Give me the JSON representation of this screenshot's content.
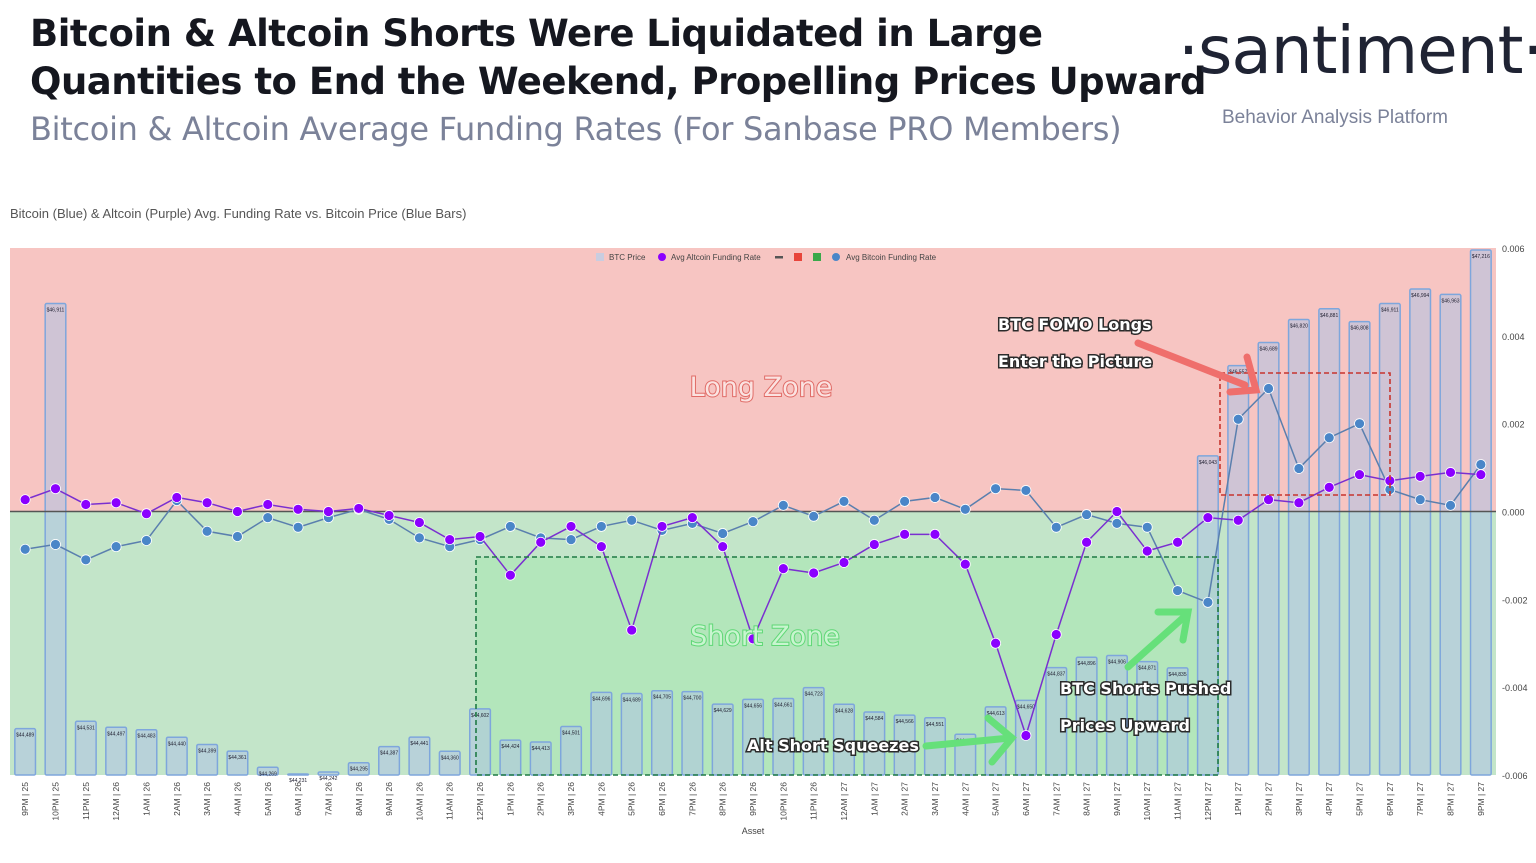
{
  "header": {
    "title_line1": "Bitcoin & Altcoin Shorts Were Liquidated in Large",
    "title_line2": "Quantities to End the Weekend, Propelling Prices Upward",
    "subtitle": "Bitcoin & Altcoin Average Funding Rates (For Sanbase PRO Members)",
    "logo": "·santiment·",
    "tagline": "Behavior Analysis Platform"
  },
  "chart_data": {
    "type": "bar+line",
    "title": "Bitcoin (Blue) & Altcoin (Purple) Avg. Funding Rate vs. Bitcoin Price (Blue Bars)",
    "xlabel": "Asset",
    "categories": [
      "9PM | 25",
      "10PM | 25",
      "11PM | 25",
      "12AM | 26",
      "1AM | 26",
      "2AM | 26",
      "3AM | 26",
      "4AM | 26",
      "5AM | 26",
      "6AM | 26",
      "7AM | 26",
      "8AM | 26",
      "9AM | 26",
      "10AM | 26",
      "11AM | 26",
      "12PM | 26",
      "1PM | 26",
      "2PM | 26",
      "3PM | 26",
      "4PM | 26",
      "5PM | 26",
      "6PM | 26",
      "7PM | 26",
      "8PM | 26",
      "9PM | 26",
      "10PM | 26",
      "11PM | 26",
      "12AM | 27",
      "1AM | 27",
      "2AM | 27",
      "3AM | 27",
      "4AM | 27",
      "5AM | 27",
      "6AM | 27",
      "7AM | 27",
      "8AM | 27",
      "9AM | 27",
      "10AM | 27",
      "11AM | 27",
      "12PM | 27",
      "1PM | 27",
      "2PM | 27",
      "3PM | 27",
      "4PM | 27",
      "5PM | 27",
      "6PM | 27",
      "7PM | 27",
      "8PM | 27",
      "9PM | 27"
    ],
    "legend": [
      "BTC Price",
      "Avg Altcoin Funding Rate",
      "",
      "",
      "",
      "Avg Bitcoin Funding Rate"
    ],
    "legend_placement": "top-center",
    "yticks": [
      "0.006",
      "0.004",
      "0.002",
      "0.000",
      "-0.002",
      "-0.004",
      "-0.006"
    ],
    "ylim": [
      -0.006,
      0.006
    ],
    "price_range": [
      44225,
      47216
    ],
    "series": [
      {
        "name": "BTC Price",
        "kind": "bar",
        "color": "#b8c7e3",
        "values": [
          44489,
          46911,
          44531,
          44497,
          44483,
          44440,
          44399,
          44361,
          44269,
          44231,
          44242,
          44295,
          44387,
          44441,
          44360,
          44602,
          44424,
          44413,
          44501,
          44696,
          44689,
          44705,
          44700,
          44629,
          44656,
          44661,
          44723,
          44628,
          44584,
          44566,
          44551,
          44457,
          44613,
          44650,
          44837,
          44896,
          44906,
          44871,
          44835,
          46043,
          46557,
          46689,
          46820,
          46881,
          46808,
          46911,
          46994,
          46963,
          47216
        ]
      },
      {
        "name": "Avg Altcoin Funding Rate",
        "kind": "line",
        "color": "#8b00ff",
        "values": [
          0.00027,
          0.00052,
          0.00016,
          0.0002,
          -5e-05,
          0.00032,
          0.0002,
          0,
          0.00016,
          5e-05,
          0,
          7e-05,
          -9e-05,
          -0.00025,
          -0.00064,
          -0.00057,
          -0.00145,
          -0.0007,
          -0.00034,
          -0.0008,
          -0.0027,
          -0.00034,
          -0.00014,
          -0.0008,
          -0.0029,
          -0.0013,
          -0.0014,
          -0.00116,
          -0.00075,
          -0.00052,
          -0.00052,
          -0.0012,
          -0.003,
          -0.0051,
          -0.0028,
          -0.0007,
          0,
          -0.0009,
          -0.0007,
          -0.00014,
          -0.0002,
          0.00027,
          0.0002,
          0.00055,
          0.00084,
          0.0007,
          0.0008,
          0.00089,
          0.00084
        ]
      },
      {
        "name": "Avg Bitcoin Funding Rate",
        "kind": "line",
        "color": "#4a86c8",
        "values": [
          -0.00086,
          -0.00075,
          -0.0011,
          -0.0008,
          -0.00066,
          0.00025,
          -0.00045,
          -0.00057,
          -0.00014,
          -0.00036,
          -0.00014,
          5e-05,
          -0.00018,
          -0.0006,
          -0.0008,
          -0.00064,
          -0.00034,
          -0.0006,
          -0.00064,
          -0.00034,
          -0.0002,
          -0.00043,
          -0.00027,
          -0.0005,
          -0.00023,
          0.00014,
          -0.00011,
          0.00023,
          -0.0002,
          0.00023,
          0.00032,
          5e-05,
          0.00052,
          0.00048,
          -0.00036,
          -7e-05,
          -0.00027,
          -0.00036,
          -0.0018,
          -0.00207,
          0.0021,
          0.0028,
          0.00098,
          0.00168,
          0.002,
          0.0005,
          0.00027,
          0.00014,
          0.00107
        ]
      }
    ],
    "zones": {
      "long_label": "Long Zone",
      "short_label": "Short Zone",
      "long_color": "#f7c5c2",
      "short_color": "#c3e5c9"
    },
    "annotations": {
      "fomo_line1": "BTC FOMO Longs",
      "fomo_line2": "Enter the Picture",
      "shorts_line1": "BTC Shorts Pushed",
      "shorts_line2": "Prices Upward",
      "alt": "Alt Short Squeezes"
    },
    "colors": {
      "legend_dash": "#555555",
      "legend_red": "#e8443a",
      "legend_green": "#3aa84a"
    }
  }
}
